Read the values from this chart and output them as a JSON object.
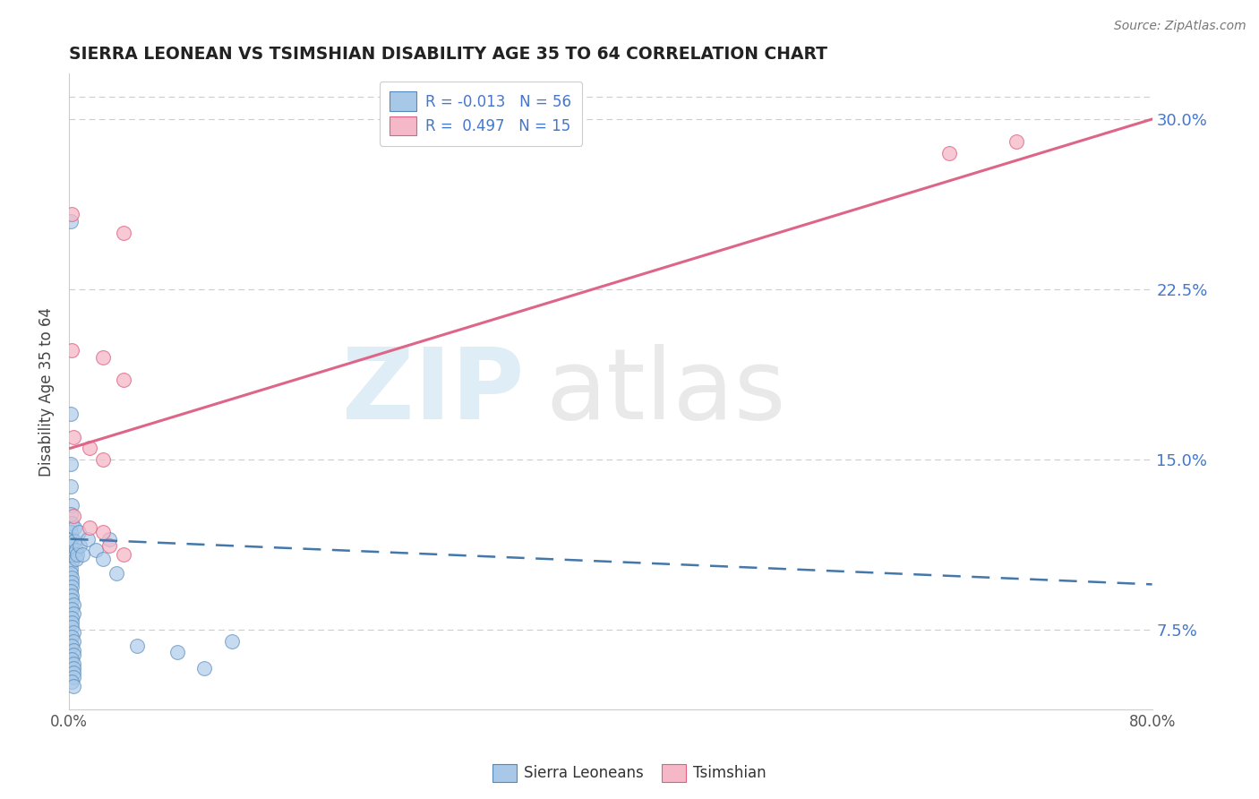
{
  "title": "SIERRA LEONEAN VS TSIMSHIAN DISABILITY AGE 35 TO 64 CORRELATION CHART",
  "source": "Source: ZipAtlas.com",
  "ylabel": "Disability Age 35 to 64",
  "xlim": [
    0.0,
    0.8
  ],
  "ylim": [
    0.04,
    0.32
  ],
  "ytick_vals": [
    0.075,
    0.15,
    0.225,
    0.3
  ],
  "ytick_labels": [
    "7.5%",
    "15.0%",
    "22.5%",
    "30.0%"
  ],
  "legend_r_blue": "-0.013",
  "legend_n_blue": "56",
  "legend_r_pink": "0.497",
  "legend_n_pink": "15",
  "blue_color": "#a8c8e8",
  "pink_color": "#f4b8c8",
  "blue_edge_color": "#5588bb",
  "pink_edge_color": "#e06080",
  "blue_line_color": "#4477aa",
  "pink_line_color": "#dd6688",
  "blue_scatter": [
    [
      0.001,
      0.255
    ],
    [
      0.001,
      0.17
    ],
    [
      0.001,
      0.148
    ],
    [
      0.001,
      0.138
    ],
    [
      0.002,
      0.13
    ],
    [
      0.001,
      0.126
    ],
    [
      0.002,
      0.122
    ],
    [
      0.001,
      0.118
    ],
    [
      0.002,
      0.115
    ],
    [
      0.001,
      0.112
    ],
    [
      0.002,
      0.108
    ],
    [
      0.002,
      0.105
    ],
    [
      0.001,
      0.102
    ],
    [
      0.001,
      0.1
    ],
    [
      0.002,
      0.098
    ],
    [
      0.002,
      0.096
    ],
    [
      0.002,
      0.094
    ],
    [
      0.001,
      0.092
    ],
    [
      0.002,
      0.09
    ],
    [
      0.002,
      0.088
    ],
    [
      0.003,
      0.086
    ],
    [
      0.002,
      0.084
    ],
    [
      0.003,
      0.082
    ],
    [
      0.002,
      0.08
    ],
    [
      0.002,
      0.078
    ],
    [
      0.002,
      0.076
    ],
    [
      0.003,
      0.074
    ],
    [
      0.002,
      0.072
    ],
    [
      0.003,
      0.07
    ],
    [
      0.002,
      0.068
    ],
    [
      0.003,
      0.066
    ],
    [
      0.003,
      0.064
    ],
    [
      0.002,
      0.062
    ],
    [
      0.003,
      0.06
    ],
    [
      0.003,
      0.058
    ],
    [
      0.003,
      0.056
    ],
    [
      0.003,
      0.054
    ],
    [
      0.002,
      0.052
    ],
    [
      0.003,
      0.05
    ],
    [
      0.004,
      0.12
    ],
    [
      0.004,
      0.114
    ],
    [
      0.005,
      0.11
    ],
    [
      0.005,
      0.106
    ],
    [
      0.006,
      0.108
    ],
    [
      0.007,
      0.118
    ],
    [
      0.008,
      0.112
    ],
    [
      0.01,
      0.108
    ],
    [
      0.014,
      0.115
    ],
    [
      0.02,
      0.11
    ],
    [
      0.025,
      0.106
    ],
    [
      0.03,
      0.115
    ],
    [
      0.035,
      0.1
    ],
    [
      0.05,
      0.068
    ],
    [
      0.08,
      0.065
    ],
    [
      0.1,
      0.058
    ],
    [
      0.12,
      0.07
    ]
  ],
  "pink_scatter": [
    [
      0.002,
      0.258
    ],
    [
      0.04,
      0.25
    ],
    [
      0.002,
      0.198
    ],
    [
      0.025,
      0.195
    ],
    [
      0.04,
      0.185
    ],
    [
      0.003,
      0.16
    ],
    [
      0.015,
      0.155
    ],
    [
      0.025,
      0.15
    ],
    [
      0.003,
      0.125
    ],
    [
      0.015,
      0.12
    ],
    [
      0.025,
      0.118
    ],
    [
      0.03,
      0.112
    ],
    [
      0.04,
      0.108
    ],
    [
      0.65,
      0.285
    ],
    [
      0.7,
      0.29
    ]
  ],
  "blue_trend_x": [
    0.001,
    0.8
  ],
  "blue_trend_y": [
    0.115,
    0.095
  ],
  "pink_trend_x": [
    0.001,
    0.8
  ],
  "pink_trend_y": [
    0.155,
    0.3
  ]
}
